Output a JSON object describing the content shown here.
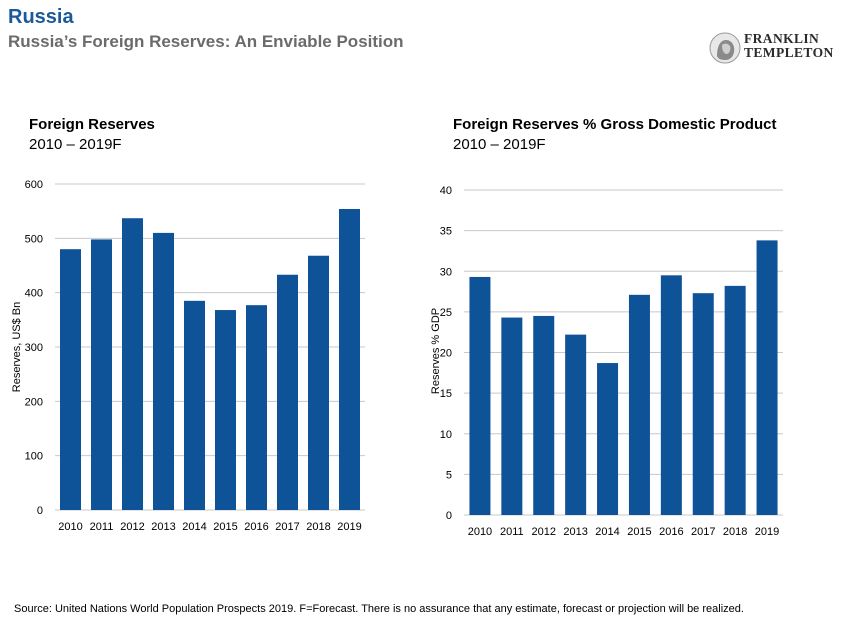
{
  "header": {
    "title": "Russia",
    "subtitle": "Russia’s Foreign Reserves: An Enviable Position"
  },
  "logo": {
    "line1": "FRANKLIN",
    "line2": "TEMPLETON"
  },
  "colors": {
    "bar": "#0e5297",
    "grid": "#c8c8c8",
    "title": "#1a5a9a"
  },
  "footnote": "Source: United Nations World Population Prospects 2019. F=Forecast. There is no assurance that any estimate, forecast or projection will be realized.",
  "chart_data": [
    {
      "type": "bar",
      "title": "Foreign Reserves",
      "subtitle": "2010 – 2019F",
      "xlabel": "",
      "ylabel": "Reserves, US$ Bn",
      "ylim": [
        0,
        600
      ],
      "yticks": [
        0,
        100,
        200,
        300,
        400,
        500,
        600
      ],
      "grid": true,
      "categories": [
        "2010",
        "2011",
        "2012",
        "2013",
        "2014",
        "2015",
        "2016",
        "2017",
        "2018",
        "2019"
      ],
      "values": [
        480,
        498,
        537,
        510,
        385,
        368,
        377,
        433,
        468,
        554
      ]
    },
    {
      "type": "bar",
      "title": "Foreign Reserves % Gross Domestic Product",
      "subtitle": "2010 – 2019F",
      "xlabel": "",
      "ylabel": "Reserves % GDP",
      "ylim": [
        0,
        40
      ],
      "yticks": [
        0,
        5,
        10,
        15,
        20,
        25,
        30,
        35,
        40
      ],
      "grid": true,
      "categories": [
        "2010",
        "2011",
        "2012",
        "2013",
        "2014",
        "2015",
        "2016",
        "2017",
        "2018",
        "2019"
      ],
      "values": [
        29.3,
        24.3,
        24.5,
        22.2,
        18.7,
        27.1,
        29.5,
        27.3,
        28.2,
        33.8
      ]
    }
  ]
}
